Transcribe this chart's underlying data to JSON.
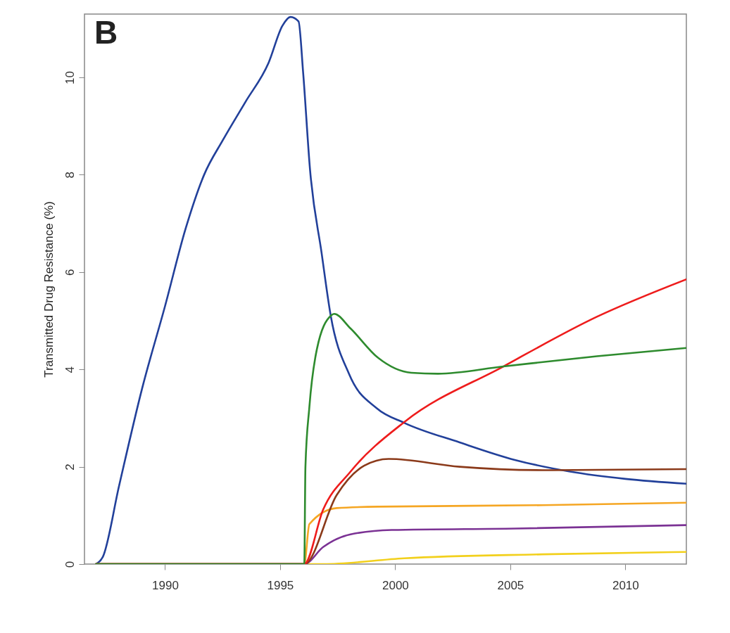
{
  "chart_data": {
    "type": "line",
    "ylabel": "Transmitted Drug Resistance (%)",
    "annotations": [
      "B"
    ],
    "xlim": [
      1986.5,
      2012.65
    ],
    "ylim": [
      0,
      11.3
    ],
    "xticks": [
      1990,
      1995,
      2000,
      2005,
      2010
    ],
    "yticks": [
      0,
      2,
      4,
      6,
      8,
      10
    ],
    "grid": false,
    "marker": "none",
    "line_style": "solid",
    "series": [
      {
        "color": "#22409a",
        "x": [
          1987.0,
          1987.3,
          1988,
          1989,
          1990,
          1990.9,
          1991.7,
          1992.5,
          1993.5,
          1994.5,
          1995.1,
          1995.45,
          1995.8,
          1996.0,
          1996.3,
          1996.8,
          1997.2,
          1998.0,
          1999.2,
          2000.4,
          2002.8,
          2005.2,
          2007.6,
          2010,
          2012.65
        ],
        "values": [
          0,
          0.15,
          1.6,
          3.6,
          5.3,
          6.9,
          8.0,
          8.7,
          9.5,
          10.3,
          11.06,
          11.24,
          11.15,
          10.1,
          8.1,
          6.4,
          5.1,
          3.9,
          3.2,
          2.9,
          2.5,
          2.14,
          1.9,
          1.75,
          1.65
        ]
      },
      {
        "color": "#f5a623",
        "x": [
          1987.0,
          1996.05,
          1996.27,
          1997.46,
          1999.25,
          2006.4,
          2012.65
        ],
        "values": [
          0,
          0,
          0.82,
          1.15,
          1.18,
          1.21,
          1.26
        ]
      },
      {
        "color": "#f2d01c",
        "x": [
          1987.0,
          1996.87,
          2000.4,
          2006.4,
          2012.65
        ],
        "values": [
          0,
          0,
          0.12,
          0.2,
          0.25
        ]
      },
      {
        "color": "#7b3294",
        "x": [
          1987.0,
          1996.05,
          1996.87,
          1998.06,
          1999.85,
          2005.2,
          2012.65
        ],
        "values": [
          0,
          0,
          0.35,
          0.61,
          0.7,
          0.73,
          0.8
        ]
      },
      {
        "color": "#8b3a1a",
        "x": [
          1987.0,
          1996.05,
          1997.46,
          1998.65,
          1999.72,
          2002.8,
          2006.4,
          2012.65
        ],
        "values": [
          0,
          0,
          1.42,
          2.02,
          2.16,
          2.0,
          1.93,
          1.95
        ]
      },
      {
        "color": "#ee1c1c",
        "x": [
          1987.0,
          1996.05,
          1996.87,
          1998.06,
          2000.4,
          2004.7,
          2008.76,
          2012.65
        ],
        "values": [
          0,
          0,
          1.12,
          1.9,
          2.92,
          4.06,
          5.08,
          5.85
        ]
      },
      {
        "color": "#2e8b2e",
        "x": [
          1987.0,
          1996.05,
          1996.1,
          1996.27,
          1996.6,
          1997.2,
          1997.35,
          1998.06,
          1999.25,
          2000.7,
          2001.86,
          2004.7,
          2008.76,
          2012.65
        ],
        "values": [
          0,
          0,
          2.0,
          3.22,
          4.42,
          5.1,
          5.14,
          4.84,
          4.24,
          3.93,
          3.91,
          4.06,
          4.27,
          4.44
        ]
      }
    ]
  }
}
